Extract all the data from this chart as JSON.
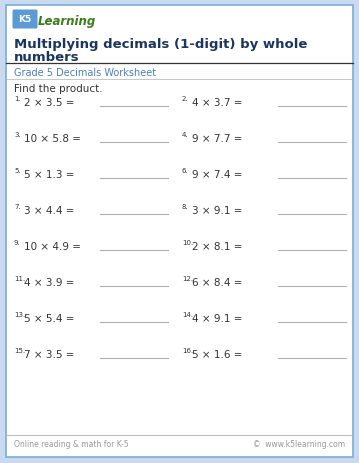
{
  "title_line1": "Multiplying decimals (1-digit) by whole",
  "title_line2": "numbers",
  "subtitle": "Grade 5 Decimals Worksheet",
  "instruction": "Find the product.",
  "problems": [
    [
      "1.",
      "2 × 3.5 =",
      "2.",
      "4 × 3.7 ="
    ],
    [
      "3.",
      "10 × 5.8 =",
      "4.",
      "9 × 7.7 ="
    ],
    [
      "5.",
      "5 × 1.3 =",
      "6.",
      "9 × 7.4 ="
    ],
    [
      "7.",
      "3 × 4.4 =",
      "8.",
      "3 × 9.1 ="
    ],
    [
      "9.",
      "10 × 4.9 =",
      "10.",
      "2 × 8.1 ="
    ],
    [
      "11.",
      "4 × 3.9 =",
      "12.",
      "6 × 8.4 ="
    ],
    [
      "13.",
      "5 × 5.4 =",
      "14.",
      "4 × 9.1 ="
    ],
    [
      "15.",
      "7 × 3.5 =",
      "16.",
      "5 × 1.6 ="
    ]
  ],
  "footer_left": "Online reading & math for K-5",
  "footer_right": "©  www.k5learning.com",
  "bg_color": "#c9d9ef",
  "page_bg": "#ffffff",
  "border_color": "#7aaed6",
  "title_color": "#1a3560",
  "subtitle_color": "#4a7ebf",
  "problem_color": "#333333",
  "line_color": "#b0b0b0",
  "header_line_color": "#333333",
  "footer_color": "#999999",
  "logo_box_color": "#5b9bd5",
  "logo_text_color": "#ffffff",
  "logo_learning_color": "#3a7d1e"
}
